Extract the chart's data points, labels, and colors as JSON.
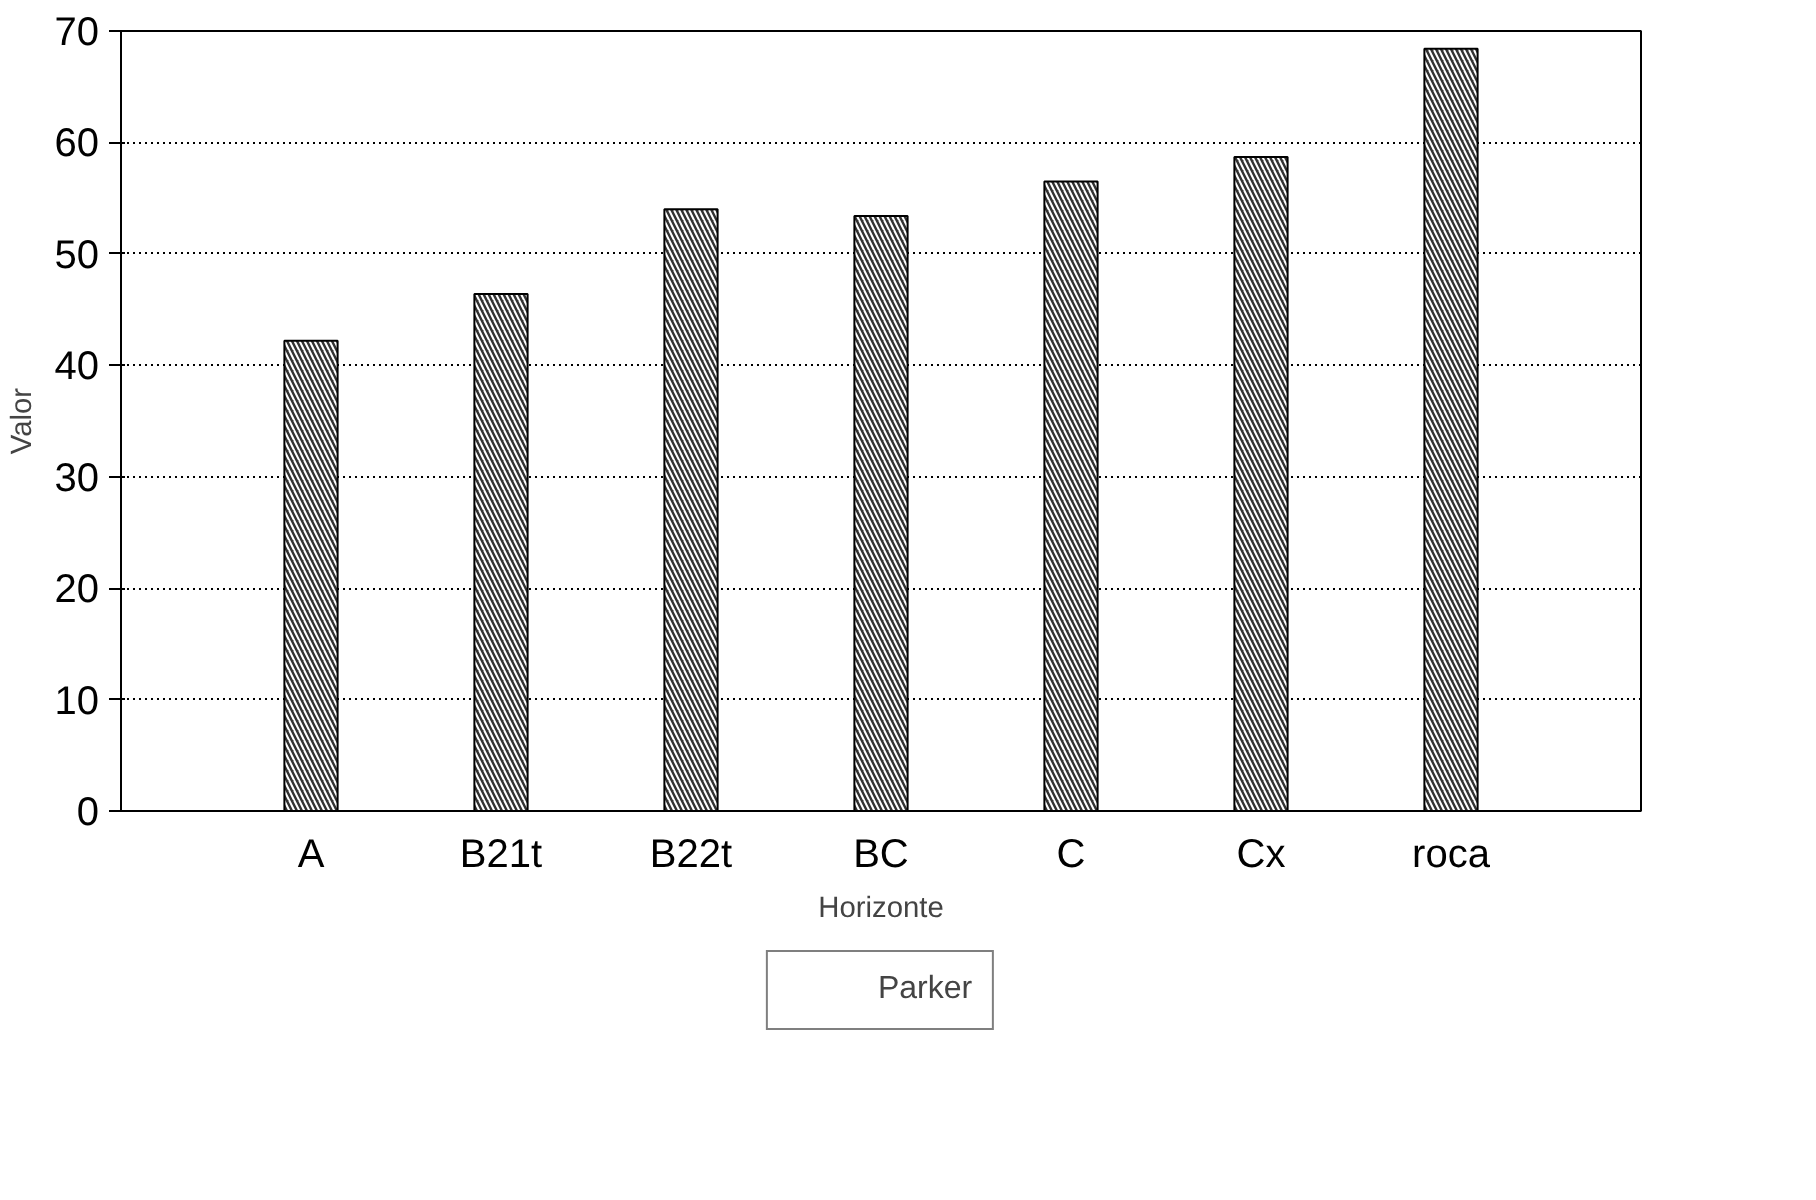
{
  "chart_data": {
    "type": "bar",
    "xlabel": "Horizonte",
    "ylabel": "Valor",
    "categories": [
      "A",
      "B21t",
      "B22t",
      "BC",
      "C",
      "Cx",
      "roca"
    ],
    "series": [
      {
        "name": "Parker",
        "color": "#333333",
        "values": [
          42.2,
          46.4,
          54.0,
          53.4,
          56.5,
          58.7,
          68.4
        ]
      }
    ],
    "ylim": [
      0,
      70
    ],
    "yticks": [
      0,
      10,
      20,
      30,
      40,
      50,
      60,
      70
    ],
    "grid": "y",
    "legend": "bottom"
  }
}
